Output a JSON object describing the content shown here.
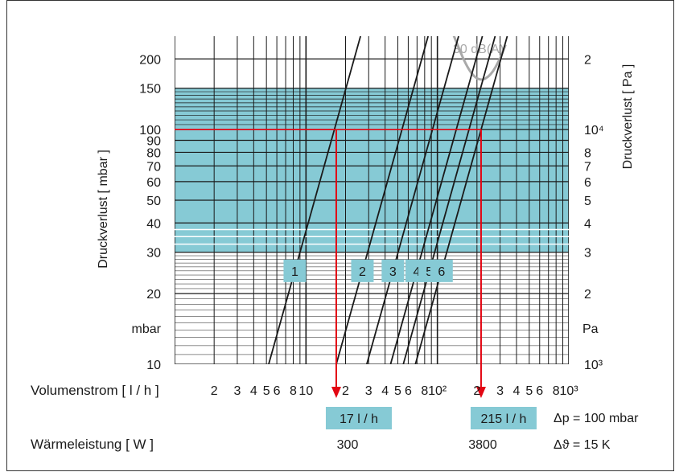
{
  "chart_data": {
    "type": "line",
    "xlabel": "Volumenstrom [ l / h ]",
    "ylabel_left": "Druckverlust [ mbar ]",
    "ylabel_right": "Druckverlust [ Pa ]",
    "x_scale": "log",
    "y_scale": "log",
    "xlim": [
      1,
      1000
    ],
    "ylim": [
      10,
      250
    ],
    "x_tick_labels": [
      {
        "v": 2,
        "t": "2"
      },
      {
        "v": 3,
        "t": "3"
      },
      {
        "v": 4,
        "t": "4"
      },
      {
        "v": 5,
        "t": "5"
      },
      {
        "v": 6,
        "t": "6"
      },
      {
        "v": 8,
        "t": "8"
      },
      {
        "v": 10,
        "t": "10"
      },
      {
        "v": 20,
        "t": "2"
      },
      {
        "v": 30,
        "t": "3"
      },
      {
        "v": 40,
        "t": "4"
      },
      {
        "v": 50,
        "t": "5"
      },
      {
        "v": 60,
        "t": "6"
      },
      {
        "v": 80,
        "t": "8"
      },
      {
        "v": 100,
        "t": "10²"
      },
      {
        "v": 200,
        "t": "2"
      },
      {
        "v": 300,
        "t": "3"
      },
      {
        "v": 400,
        "t": "4"
      },
      {
        "v": 500,
        "t": "5"
      },
      {
        "v": 600,
        "t": "6"
      },
      {
        "v": 800,
        "t": "8"
      },
      {
        "v": 1000,
        "t": "10³"
      }
    ],
    "y_tick_labels_left": [
      {
        "v": 200,
        "t": "200"
      },
      {
        "v": 150,
        "t": "150"
      },
      {
        "v": 100,
        "t": "100"
      },
      {
        "v": 90,
        "t": "90"
      },
      {
        "v": 80,
        "t": "80"
      },
      {
        "v": 70,
        "t": "70"
      },
      {
        "v": 60,
        "t": "60"
      },
      {
        "v": 50,
        "t": "50"
      },
      {
        "v": 40,
        "t": "40"
      },
      {
        "v": 30,
        "t": "30"
      },
      {
        "v": 20,
        "t": "20"
      },
      {
        "v": 10,
        "t": "10"
      }
    ],
    "y_unit_left": "mbar",
    "y_tick_labels_right": [
      {
        "v": 200,
        "t": "2"
      },
      {
        "v": 100,
        "t": "10⁴"
      },
      {
        "v": 80,
        "t": "8"
      },
      {
        "v": 70,
        "t": "7"
      },
      {
        "v": 60,
        "t": "6"
      },
      {
        "v": 50,
        "t": "5"
      },
      {
        "v": 40,
        "t": "4"
      },
      {
        "v": 30,
        "t": "3"
      },
      {
        "v": 20,
        "t": "2"
      },
      {
        "v": 10,
        "t": "10³"
      }
    ],
    "y_unit_right": "Pa",
    "shaded_band": {
      "from": 30,
      "to": 150,
      "color": "#86cad5"
    },
    "series": [
      {
        "name": "1",
        "x_at_10": 5.2,
        "x_at_250": 26
      },
      {
        "name": "2",
        "x_at_10": 17,
        "x_at_250": 85
      },
      {
        "name": "3",
        "x_at_10": 29,
        "x_at_250": 145
      },
      {
        "name": "4",
        "x_at_10": 44,
        "x_at_250": 220
      },
      {
        "name": "5",
        "x_at_10": 55,
        "x_at_250": 275
      },
      {
        "name": "6",
        "x_at_10": 68,
        "x_at_250": 340
      }
    ],
    "series_labels_y": 25,
    "curve_label": "30 dB(A)",
    "curve_color": "#a9a9a9",
    "curve_points": [
      [
        130,
        260
      ],
      [
        170,
        180
      ],
      [
        210,
        160
      ],
      [
        255,
        170
      ],
      [
        300,
        200
      ],
      [
        330,
        230
      ]
    ],
    "markers": [
      {
        "x": 17,
        "y": 100,
        "label": "17 l / h",
        "color": "#e30613"
      },
      {
        "x": 215,
        "y": 100,
        "label": "215 l / h",
        "color": "#e30613"
      }
    ],
    "footer": {
      "dp_note": "Δp = 100 mbar",
      "power_label": "Wärmeleistung [ W ]",
      "power_values": [
        "300",
        "3800"
      ],
      "dt_note": "Δϑ = 15 K"
    },
    "grid": true,
    "accent_color": "#86cad5",
    "marker_color": "#e30613"
  }
}
